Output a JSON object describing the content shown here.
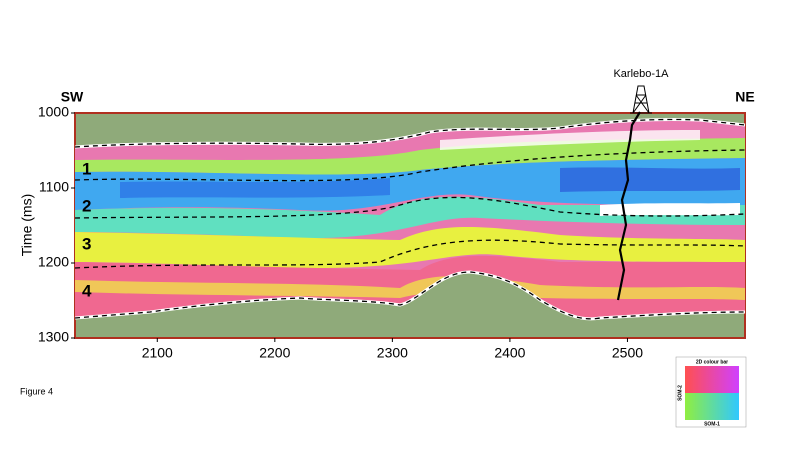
{
  "figure": {
    "label": "Figure 4",
    "well": "Karlebo-1A",
    "left_label": "SW",
    "right_label": "NE",
    "zones": [
      "1",
      "2",
      "3",
      "4"
    ],
    "y_axis": {
      "label": "Time (ms)",
      "lim": [
        1000,
        1300
      ],
      "ticks": [
        1000,
        1100,
        1200,
        1300
      ]
    },
    "x_axis": {
      "lim": [
        2030,
        2600
      ],
      "ticks": [
        2100,
        2200,
        2300,
        2400,
        2500
      ]
    },
    "colorbar": {
      "title": "2D colour bar",
      "x_label": "SOM-1",
      "y_label": "SOM-2"
    }
  }
}
